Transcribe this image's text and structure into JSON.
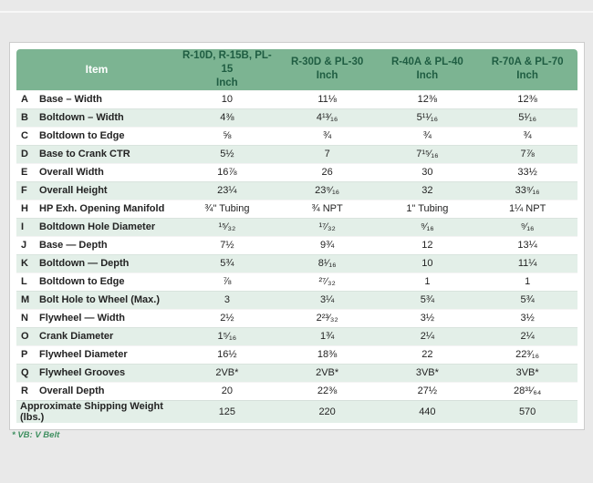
{
  "page": {
    "footnote": "* VB: V Belt"
  },
  "colors": {
    "page_bg": "#e9e9e9",
    "header_green": "#7cb492",
    "header_text": "#1f5d42",
    "stripe_green": "#e3efe8",
    "footnote_green": "#3f8f60",
    "card_border": "#cccccc"
  },
  "table": {
    "header": {
      "item_label": "Item",
      "columns": [
        {
          "models": "R-10D, R-15B, PL-15",
          "unit": "Inch"
        },
        {
          "models": "R-30D & PL-30",
          "unit": "Inch"
        },
        {
          "models": "R-40A & PL-40",
          "unit": "Inch"
        },
        {
          "models": "R-70A & PL-70",
          "unit": "Inch"
        }
      ]
    },
    "rows": [
      {
        "letter": "A",
        "item": "Base – Width",
        "values": [
          "10",
          "11⅛",
          "12⅜",
          "12⅜"
        ]
      },
      {
        "letter": "B",
        "item": "Boltdown – Width",
        "values": [
          "4⅜",
          "4¹³⁄₁₆",
          "5¹¹⁄₁₆",
          "5¹⁄₁₆"
        ]
      },
      {
        "letter": "C",
        "item": "Boltdown to Edge",
        "values": [
          "⅝",
          "¾",
          "¾",
          "¾"
        ]
      },
      {
        "letter": "D",
        "item": "Base to Crank CTR",
        "values": [
          "5½",
          "7",
          "7¹⁵⁄₁₆",
          "7⅞"
        ]
      },
      {
        "letter": "E",
        "item": "Overall Width",
        "values": [
          "16⅞",
          "26",
          "30",
          "33½"
        ]
      },
      {
        "letter": "F",
        "item": "Overall Height",
        "values": [
          "23¼",
          "23⁹⁄₁₆",
          "32",
          "33⁹⁄₁₆"
        ]
      },
      {
        "letter": "H",
        "item": "HP Exh. Opening Manifold",
        "values": [
          "¾\" Tubing",
          "¾ NPT",
          "1\" Tubing",
          "1¼ NPT"
        ]
      },
      {
        "letter": "I",
        "item": "Boltdown Hole Diameter",
        "values": [
          "¹⁵⁄₃₂",
          "¹⁷⁄₃₂",
          "⁹⁄₁₆",
          "⁹⁄₁₆"
        ]
      },
      {
        "letter": "J",
        "item": "Base — Depth",
        "values": [
          "7½",
          "9¾",
          "12",
          "13¼"
        ]
      },
      {
        "letter": "K",
        "item": "Boltdown — Depth",
        "values": [
          "5¾",
          "8¹⁄₁₆",
          "10",
          "11¼"
        ]
      },
      {
        "letter": "L",
        "item": "Boltdown to Edge",
        "values": [
          "⅞",
          "²⁷⁄₃₂",
          "1",
          "1"
        ]
      },
      {
        "letter": "M",
        "item": "Bolt Hole to Wheel (Max.)",
        "values": [
          "3",
          "3¼",
          "5¾",
          "5¾"
        ]
      },
      {
        "letter": "N",
        "item": "Flywheel — Width",
        "values": [
          "2½",
          "2²³⁄₃₂",
          "3½",
          "3½"
        ]
      },
      {
        "letter": "O",
        "item": "Crank Diameter",
        "values": [
          "1⁵⁄₁₆",
          "1¾",
          "2¼",
          "2¼"
        ]
      },
      {
        "letter": "P",
        "item": "Flywheel Diameter",
        "values": [
          "16½",
          "18⅜",
          "22",
          "22³⁄₁₆"
        ]
      },
      {
        "letter": "Q",
        "item": "Flywheel Grooves",
        "values": [
          "2VB*",
          "2VB*",
          "3VB*",
          "3VB*"
        ]
      },
      {
        "letter": "R",
        "item": "Overall Depth",
        "values": [
          "20",
          "22⅜",
          "27½",
          "28³¹⁄₆₄"
        ]
      }
    ],
    "footer": {
      "label": "Approximate Shipping Weight (lbs.)",
      "values": [
        "125",
        "220",
        "440",
        "570"
      ]
    }
  }
}
